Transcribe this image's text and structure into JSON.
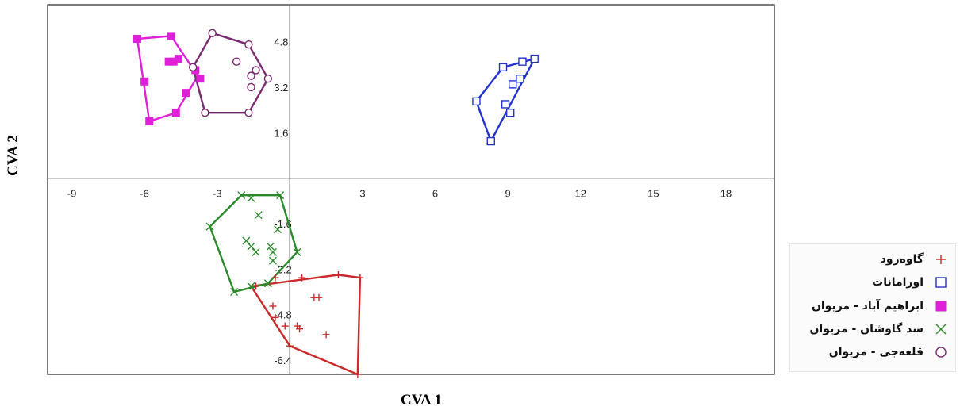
{
  "chart_data": {
    "type": "scatter",
    "xlabel": "CVA 1",
    "ylabel": "CVA 2",
    "xlim": [
      -10,
      20
    ],
    "ylim": [
      -6.9,
      6.1
    ],
    "x_ticks": [
      -9,
      -6,
      -3,
      0,
      3,
      6,
      9,
      12,
      15,
      18
    ],
    "y_ticks": [
      4.8,
      3.2,
      1.6,
      -1.6,
      -3.2,
      -4.8,
      -6.4
    ],
    "x_tick_labels": [
      "-9",
      "-6",
      "-3",
      "0",
      "3",
      "6",
      "9",
      "12",
      "15",
      "18"
    ],
    "y_tick_labels": [
      "4.8",
      "3.2",
      "1.6",
      "-1.6",
      "-3.2",
      "-4.8",
      "-6.4"
    ],
    "axes_through_origin": true,
    "grid": false,
    "legend_position": "right-bottom",
    "series": [
      {
        "name": "گاوه‌رود",
        "color": "#cc2a2a",
        "marker": "plus",
        "points": [
          [
            -1.4,
            -3.8
          ],
          [
            -0.6,
            -3.5
          ],
          [
            0.5,
            -3.5
          ],
          [
            1.0,
            -4.2
          ],
          [
            1.2,
            -4.2
          ],
          [
            2.0,
            -3.4
          ],
          [
            2.9,
            -3.5
          ],
          [
            -0.7,
            -4.5
          ],
          [
            -0.6,
            -4.9
          ],
          [
            0.3,
            -5.2
          ],
          [
            0.4,
            -5.3
          ],
          [
            1.5,
            -5.5
          ],
          [
            0.0,
            -5.9
          ],
          [
            2.8,
            -6.9
          ],
          [
            -0.2,
            -5.2
          ]
        ],
        "hull": [
          [
            -1.6,
            -3.8
          ],
          [
            2.0,
            -3.4
          ],
          [
            2.9,
            -3.5
          ],
          [
            2.8,
            -6.9
          ],
          [
            0.0,
            -5.9
          ],
          [
            -1.6,
            -3.8
          ]
        ]
      },
      {
        "name": "اورامانات",
        "color": "#2233cc",
        "marker": "square-open",
        "points": [
          [
            7.7,
            2.7
          ],
          [
            8.8,
            3.9
          ],
          [
            9.2,
            3.3
          ],
          [
            9.6,
            4.1
          ],
          [
            10.1,
            4.2
          ],
          [
            9.5,
            3.5
          ],
          [
            8.9,
            2.6
          ],
          [
            9.1,
            2.3
          ],
          [
            8.3,
            1.3
          ]
        ],
        "hull": [
          [
            7.7,
            2.7
          ],
          [
            8.8,
            3.9
          ],
          [
            10.1,
            4.2
          ],
          [
            8.3,
            1.3
          ],
          [
            7.7,
            2.7
          ]
        ]
      },
      {
        "name": "ابراهیم آباد - مریوان",
        "color": "#e020d8",
        "marker": "square-filled",
        "points": [
          [
            -6.3,
            4.9
          ],
          [
            -4.9,
            5.0
          ],
          [
            -5.0,
            4.1
          ],
          [
            -4.8,
            4.1
          ],
          [
            -4.6,
            4.2
          ],
          [
            -3.9,
            3.8
          ],
          [
            -3.7,
            3.5
          ],
          [
            -6.0,
            3.4
          ],
          [
            -4.3,
            3.0
          ],
          [
            -4.7,
            2.3
          ],
          [
            -5.8,
            2.0
          ]
        ],
        "hull": [
          [
            -6.3,
            4.9
          ],
          [
            -4.9,
            5.0
          ],
          [
            -3.8,
            3.6
          ],
          [
            -4.7,
            2.3
          ],
          [
            -5.8,
            2.0
          ],
          [
            -6.3,
            4.9
          ]
        ]
      },
      {
        "name": "سد گاوشان - مریوان",
        "color": "#2a8a2a",
        "marker": "x",
        "points": [
          [
            -2.0,
            -0.6
          ],
          [
            -1.6,
            -0.7
          ],
          [
            -0.4,
            -0.6
          ],
          [
            -1.3,
            -1.3
          ],
          [
            -3.3,
            -1.7
          ],
          [
            -0.5,
            -1.8
          ],
          [
            -1.8,
            -2.2
          ],
          [
            -1.6,
            -2.4
          ],
          [
            -0.8,
            -2.4
          ],
          [
            -1.4,
            -2.6
          ],
          [
            -0.7,
            -2.6
          ],
          [
            0.3,
            -2.6
          ],
          [
            -0.7,
            -2.9
          ],
          [
            -2.3,
            -4.0
          ],
          [
            -1.6,
            -3.8
          ],
          [
            -0.9,
            -3.7
          ]
        ],
        "hull": [
          [
            -2.0,
            -0.6
          ],
          [
            -0.4,
            -0.6
          ],
          [
            0.3,
            -2.6
          ],
          [
            -0.9,
            -3.7
          ],
          [
            -2.3,
            -4.0
          ],
          [
            -3.3,
            -1.7
          ],
          [
            -2.0,
            -0.6
          ]
        ]
      },
      {
        "name": "قلعه‌جی - مریوان",
        "color": "#7a2a70",
        "marker": "circle-open",
        "points": [
          [
            -3.2,
            5.1
          ],
          [
            -1.7,
            4.7
          ],
          [
            -2.2,
            4.1
          ],
          [
            -1.4,
            3.8
          ],
          [
            -1.6,
            3.6
          ],
          [
            -0.9,
            3.5
          ],
          [
            -1.6,
            3.2
          ],
          [
            -4.0,
            3.9
          ],
          [
            -3.5,
            2.3
          ],
          [
            -1.7,
            2.3
          ]
        ],
        "hull": [
          [
            -3.2,
            5.1
          ],
          [
            -1.7,
            4.7
          ],
          [
            -0.9,
            3.5
          ],
          [
            -1.7,
            2.3
          ],
          [
            -3.5,
            2.3
          ],
          [
            -4.0,
            3.9
          ],
          [
            -3.2,
            5.1
          ]
        ]
      }
    ]
  }
}
